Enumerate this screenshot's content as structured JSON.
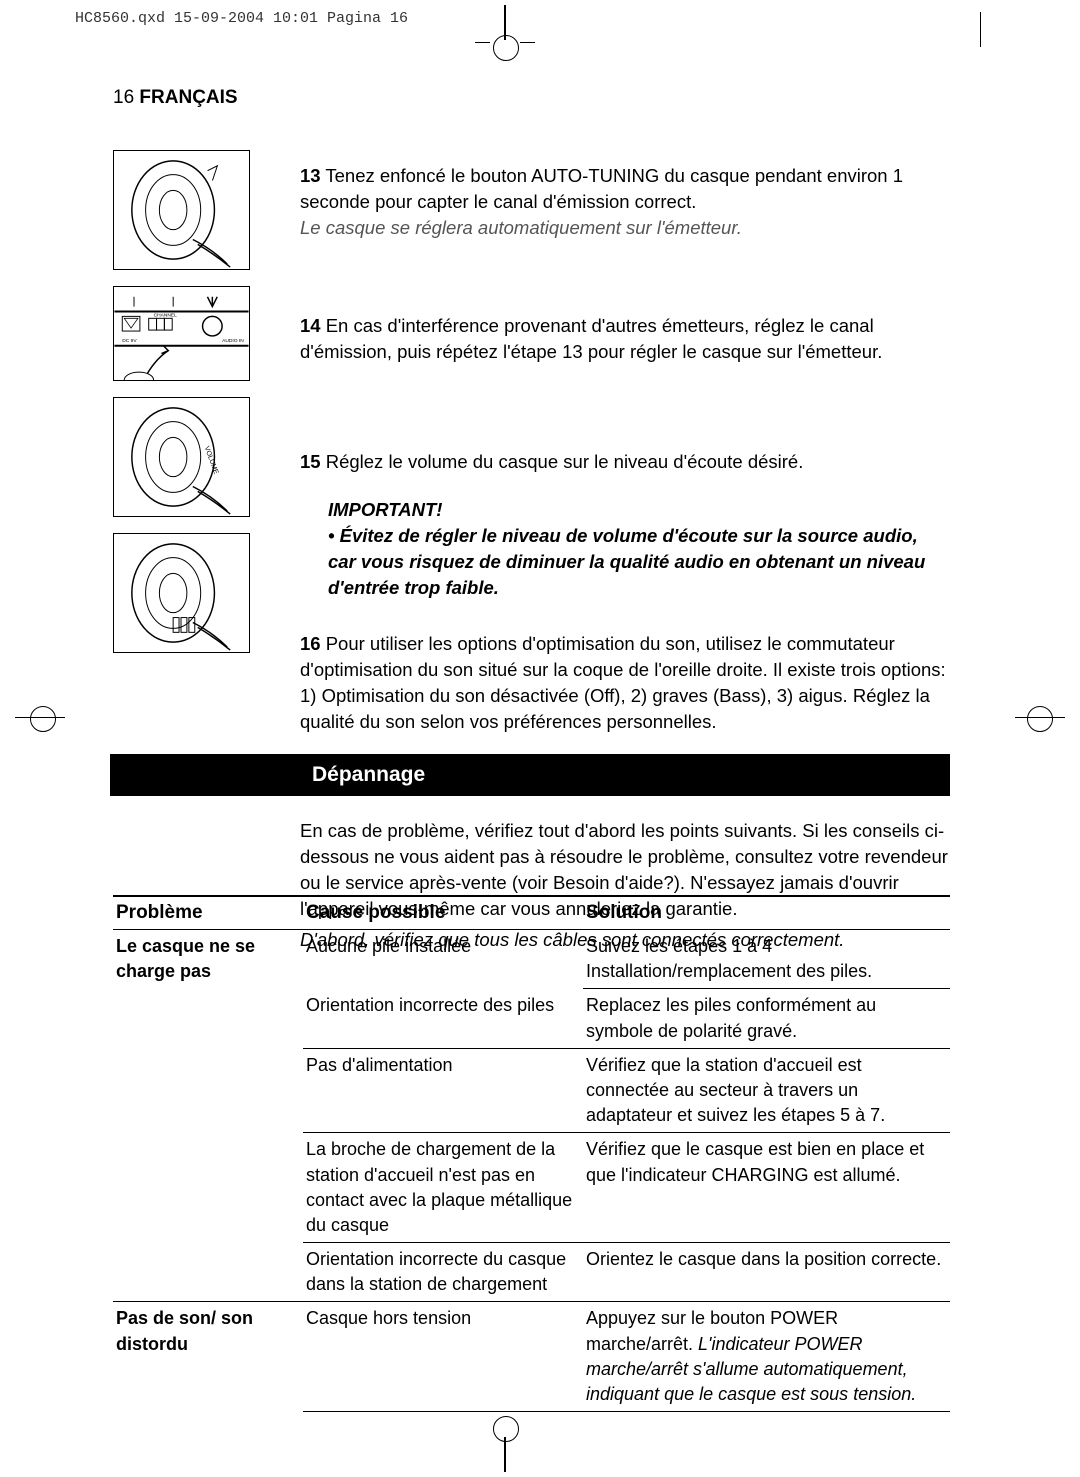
{
  "print_header": "HC8560.qxd  15-09-2004  10:01  Pagina 16",
  "page_number": "16",
  "language_label": "FRANÇAIS",
  "steps": {
    "s13": {
      "num": "13",
      "text": "Tenez enfoncé le bouton AUTO-TUNING du casque pendant environ 1 seconde pour capter le canal d'émission correct.",
      "note": "Le casque se réglera automatiquement sur l'émetteur."
    },
    "s14": {
      "num": "14",
      "text": "En cas d'interférence provenant d'autres émetteurs, réglez le canal d'émission, puis répétez l'étape 13 pour régler le casque sur l'émetteur."
    },
    "s15": {
      "num": "15",
      "text": "Réglez le volume du casque sur le niveau d'écoute désiré."
    },
    "important": {
      "label": "IMPORTANT!",
      "text": "• Évitez de régler le niveau de volume d'écoute sur la source audio, car vous risquez de diminuer la qualité audio en obtenant un niveau d'entrée trop faible."
    },
    "s16": {
      "num": "16",
      "text": "Pour utiliser les options d'optimisation du son, utilisez le commutateur d'optimisation du son situé sur la coque de l'oreille droite. Il existe trois options: 1) Optimisation du son désactivée (Off), 2) graves (Bass), 3) aigus. Réglez la qualité du son selon vos préférences personnelles."
    }
  },
  "section_title": "Dépannage",
  "intro": {
    "text": "En cas de problème, vérifiez tout d'abord les points suivants. Si les conseils ci-dessous ne vous aident pas à résoudre le problème, consultez votre revendeur ou le service après-vente (voir Besoin d'aide?). N'essayez jamais d'ouvrir l'appareil vous-même car vous annuleriez la garantie.",
    "italic": "D'abord, vérifiez que tous les câbles sont connectés correctement."
  },
  "table": {
    "headers": {
      "problem": "Problème",
      "cause": "Cause possible",
      "solution": "Solution"
    },
    "rows": [
      {
        "problem": "Le casque ne se charge pas",
        "cause": "Aucune pile installée",
        "solution": "Suivez les étapes 1 à 4 Installation/remplacement des piles.",
        "sep_sol": true
      },
      {
        "problem": "",
        "cause": "Orientation incorrecte des piles",
        "solution": "Replacez les piles conformément au symbole de polarité gravé.",
        "sep_cause": true,
        "sep_sol": true
      },
      {
        "problem": "",
        "cause": "Pas d'alimentation",
        "solution": "Vérifiez que la station d'accueil est connectée au secteur à travers un adaptateur et suivez les étapes 5 à 7.",
        "sep_cause": true,
        "sep_sol": true
      },
      {
        "problem": "",
        "cause": "La broche de chargement de la station d'accueil n'est pas en contact avec la plaque métallique du casque",
        "solution": "Vérifiez que le casque est bien en place et que l'indicateur CHARGING est allumé.",
        "sep_cause": true,
        "sep_sol": true
      },
      {
        "problem": "",
        "cause": "Orientation incorrecte du casque dans la station de chargement",
        "solution": "Orientez le casque dans la position correcte.",
        "sep_cause": true,
        "sep_sol": true,
        "prob_border": true
      },
      {
        "problem": "Pas de son/ son distordu",
        "cause": "Casque hors tension",
        "solution_pre": "Appuyez sur le bouton POWER marche/arrêt. ",
        "solution_it": "L'indicateur POWER marche/arrêt s'allume automatiquement, indiquant que le casque est sous tension.",
        "sep_cause": true,
        "sep_sol": true
      }
    ]
  }
}
